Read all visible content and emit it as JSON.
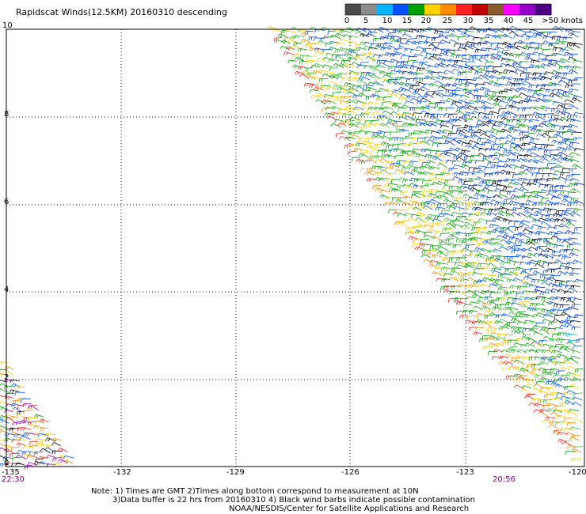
{
  "title": "Rapidscat Winds(12.5KM) 20160310 descending",
  "legend": {
    "colors": [
      "#4a4a4a",
      "#8c8c8c",
      "#00b4ff",
      "#0050ff",
      "#00a000",
      "#ffd200",
      "#ff8c00",
      "#ff2020",
      "#c00000",
      "#8b5a2b",
      "#ff00ff",
      "#9600c8",
      "#4b0082"
    ],
    "labels": [
      "0",
      "5",
      "10",
      "15",
      "20",
      "25",
      "30",
      "35",
      "40",
      "45",
      ">50 knots"
    ]
  },
  "map": {
    "x_ticks": [
      "-132",
      "-129",
      "-126",
      "-123"
    ],
    "x_edge_left": "-135",
    "x_edge_right": "-120",
    "y_ticks": [
      "2",
      "4",
      "6",
      "8"
    ],
    "y_top": "10",
    "y_bottom": "0",
    "time_left": "22:30",
    "time_right": "20:56",
    "lon_range": [
      -135,
      -120
    ],
    "lat_range": [
      0,
      10
    ],
    "grid": "dotted"
  },
  "notes": {
    "line1": "Note: 1) Times are GMT 2)Times along bottom correspond to measurement at 10N",
    "line2": "3)Data buffer is 22 hrs from 20160310 4) Black wind barbs indicate possible contamination",
    "line3": "NOAA/NESDIS/Center for Satellite Applications and Research"
  }
}
